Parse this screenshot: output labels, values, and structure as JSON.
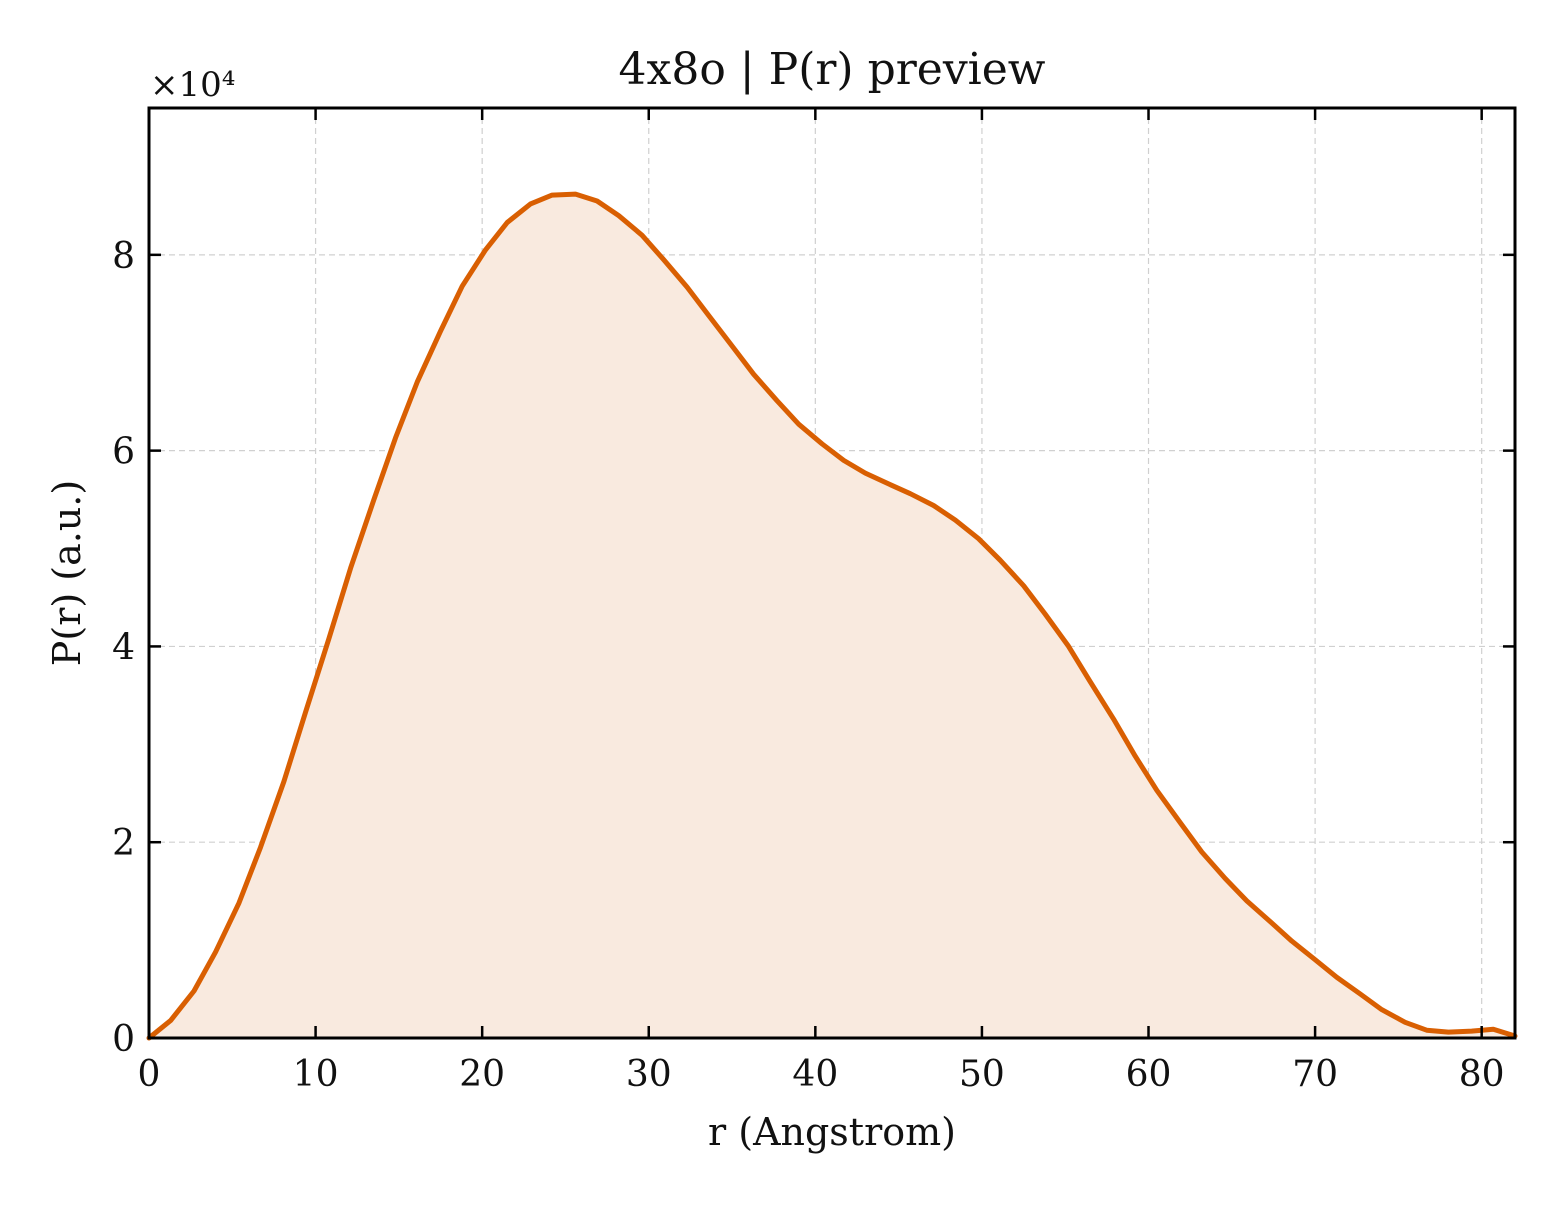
{
  "chart_data": {
    "type": "area",
    "title": "4x8o | P(r) preview",
    "xlabel": "r (Angstrom)",
    "ylabel": "P(r) (a.u.)",
    "y_multiplier_label": "×10⁴",
    "y_scale_factor": 10000,
    "xlim": [
      0,
      82
    ],
    "ylim": [
      0,
      9.5
    ],
    "x_ticks": [
      0,
      10,
      20,
      30,
      40,
      50,
      60,
      70,
      80
    ],
    "y_ticks": [
      0,
      2,
      4,
      6,
      8
    ],
    "grid": true,
    "legend": "none",
    "series": [
      {
        "line_color": "#d95f02",
        "fill_color": "#f9eadf",
        "points": [
          [
            0.0,
            0.0
          ],
          [
            1.3,
            0.18
          ],
          [
            2.7,
            0.48
          ],
          [
            4.0,
            0.88
          ],
          [
            5.4,
            1.38
          ],
          [
            6.7,
            1.95
          ],
          [
            8.1,
            2.62
          ],
          [
            9.4,
            3.33
          ],
          [
            10.8,
            4.08
          ],
          [
            12.1,
            4.8
          ],
          [
            13.5,
            5.5
          ],
          [
            14.8,
            6.13
          ],
          [
            16.1,
            6.7
          ],
          [
            17.5,
            7.22
          ],
          [
            18.8,
            7.68
          ],
          [
            20.2,
            8.05
          ],
          [
            21.5,
            8.33
          ],
          [
            22.9,
            8.52
          ],
          [
            24.2,
            8.61
          ],
          [
            25.6,
            8.62
          ],
          [
            26.9,
            8.55
          ],
          [
            28.2,
            8.4
          ],
          [
            29.6,
            8.2
          ],
          [
            30.9,
            7.95
          ],
          [
            32.3,
            7.67
          ],
          [
            33.6,
            7.38
          ],
          [
            35.0,
            7.07
          ],
          [
            36.3,
            6.78
          ],
          [
            37.7,
            6.51
          ],
          [
            39.0,
            6.27
          ],
          [
            40.4,
            6.07
          ],
          [
            41.7,
            5.9
          ],
          [
            43.0,
            5.77
          ],
          [
            44.4,
            5.66
          ],
          [
            45.7,
            5.56
          ],
          [
            47.1,
            5.44
          ],
          [
            48.4,
            5.29
          ],
          [
            49.8,
            5.1
          ],
          [
            51.1,
            4.88
          ],
          [
            52.5,
            4.62
          ],
          [
            53.8,
            4.33
          ],
          [
            55.2,
            4.0
          ],
          [
            56.5,
            3.64
          ],
          [
            57.9,
            3.26
          ],
          [
            59.2,
            2.88
          ],
          [
            60.5,
            2.53
          ],
          [
            61.9,
            2.2
          ],
          [
            63.2,
            1.9
          ],
          [
            64.6,
            1.63
          ],
          [
            65.9,
            1.4
          ],
          [
            67.3,
            1.19
          ],
          [
            68.6,
            0.99
          ],
          [
            70.0,
            0.8
          ],
          [
            71.3,
            0.62
          ],
          [
            72.7,
            0.45
          ],
          [
            74.0,
            0.29
          ],
          [
            75.4,
            0.16
          ],
          [
            76.7,
            0.08
          ],
          [
            78.0,
            0.06
          ],
          [
            79.4,
            0.07
          ],
          [
            80.7,
            0.09
          ],
          [
            82.0,
            0.02
          ]
        ]
      }
    ]
  }
}
